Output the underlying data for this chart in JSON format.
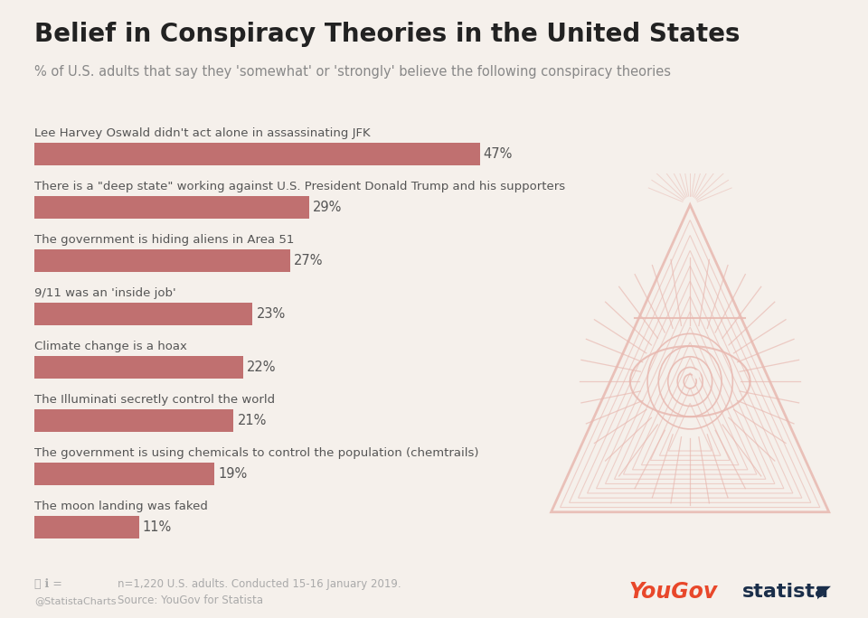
{
  "title": "Belief in Conspiracy Theories in the United States",
  "subtitle": "% of U.S. adults that say they 'somewhat' or 'strongly' believe the following conspiracy theories",
  "categories": [
    "Lee Harvey Oswald didn't act alone in assassinating JFK",
    "There is a \"deep state\" working against U.S. President Donald Trump and his supporters",
    "The government is hiding aliens in Area 51",
    "9/11 was an 'inside job'",
    "Climate change is a hoax",
    "The Illuminati secretly control the world",
    "The government is using chemicals to control the population (chemtrails)",
    "The moon landing was faked"
  ],
  "values": [
    47,
    29,
    27,
    23,
    22,
    21,
    19,
    11
  ],
  "bar_color": "#c07070",
  "background_color": "#f5f0eb",
  "text_color_dark": "#555555",
  "title_color": "#222222",
  "subtitle_color": "#888888",
  "footnote": "n=1,220 U.S. adults. Conducted 15-16 January 2019.",
  "source": "Source: YouGov for Statista",
  "credit": "@StatistaCharts",
  "bar_max_pct": 47,
  "triangle_color": "#e8b8b0"
}
